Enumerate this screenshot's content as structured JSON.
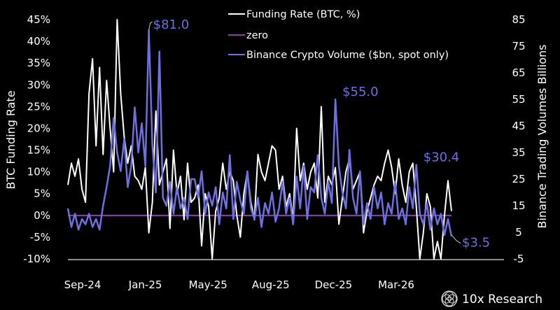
{
  "chart_data": {
    "type": "line",
    "left_axis": {
      "label": "BTC Funding Rate",
      "ticks": [
        "45%",
        "40%",
        "35%",
        "30%",
        "25%",
        "20%",
        "15%",
        "10%",
        "5%",
        "0%",
        "-5%",
        "-10%"
      ],
      "range": [
        -10,
        45
      ]
    },
    "right_axis": {
      "label": "Binance Trading  Volumes Billions",
      "ticks": [
        "85",
        "75",
        "65",
        "55",
        "45",
        "35",
        "25",
        "15",
        "5",
        "-5"
      ],
      "range": [
        -5,
        85
      ]
    },
    "x_ticks": [
      "Sep-24",
      "Jan-25",
      "May-25",
      "Aug-25",
      "Dec-25",
      "Mar-26"
    ],
    "grid": false,
    "legend_placement": "top-right",
    "series": [
      {
        "name": "Funding Rate (BTC, %)",
        "axis": "left",
        "color": "#ffffff",
        "values": [
          7,
          12,
          9,
          13,
          6,
          3,
          28,
          36,
          16,
          34,
          14,
          31,
          20,
          10,
          45,
          28,
          18,
          12,
          16,
          9,
          8,
          6,
          11,
          -4,
          3,
          24,
          7,
          10,
          13,
          -3,
          15,
          5,
          9,
          -1,
          12,
          3,
          4,
          7,
          -7,
          5,
          2,
          -10,
          1,
          4,
          12,
          6,
          10,
          8,
          0,
          -5,
          5,
          10,
          3,
          -1,
          14,
          10,
          8,
          12,
          16,
          15,
          6,
          9,
          2,
          5,
          -1,
          20,
          8,
          12,
          6,
          10,
          12,
          4,
          25,
          3,
          9,
          7,
          11,
          -2,
          4,
          10,
          13,
          6,
          8,
          10,
          -4,
          1,
          4,
          7,
          9,
          8,
          12,
          15,
          11,
          5,
          13,
          7,
          3,
          10,
          12,
          2,
          -10,
          -4,
          5,
          2,
          -10,
          -6,
          -10,
          0,
          8,
          1
        ]
      },
      {
        "name": "zero",
        "axis": "left",
        "color": "#8a3fb0",
        "values": [
          0
        ]
      },
      {
        "name": "Binance Crypto Volume ($bn, spot only)",
        "axis": "right",
        "color": "#6f6fe0",
        "values": [
          14,
          7,
          12,
          6,
          10,
          8,
          12,
          7,
          10,
          6,
          15,
          22,
          30,
          48,
          35,
          28,
          40,
          22,
          30,
          52,
          35,
          46,
          30,
          81,
          38,
          20,
          73,
          18,
          15,
          24,
          12,
          22,
          14,
          18,
          10,
          25,
          25,
          18,
          28,
          12,
          20,
          15,
          22,
          8,
          20,
          14,
          34,
          10,
          24,
          17,
          12,
          28,
          14,
          10,
          18,
          7,
          16,
          12,
          20,
          9,
          14,
          24,
          12,
          18,
          8,
          26,
          14,
          30,
          10,
          22,
          20,
          34,
          18,
          12,
          24,
          16,
          55,
          30,
          20,
          14,
          36,
          18,
          12,
          28,
          8,
          16,
          10,
          22,
          14,
          20,
          8,
          16,
          12,
          24,
          10,
          14,
          8,
          22,
          14,
          30.4,
          12,
          8,
          16,
          6,
          14,
          8,
          12,
          4,
          10,
          3.5
        ]
      }
    ],
    "annotations": [
      {
        "text": "$81.0",
        "series": 2,
        "index": 23
      },
      {
        "text": "$55.0",
        "series": 2,
        "index": 76
      },
      {
        "text": "$30.4",
        "series": 2,
        "index": 99
      },
      {
        "text": "$3.5",
        "series": 2,
        "index": 109
      }
    ]
  },
  "branding": {
    "name": "10x Research"
  }
}
